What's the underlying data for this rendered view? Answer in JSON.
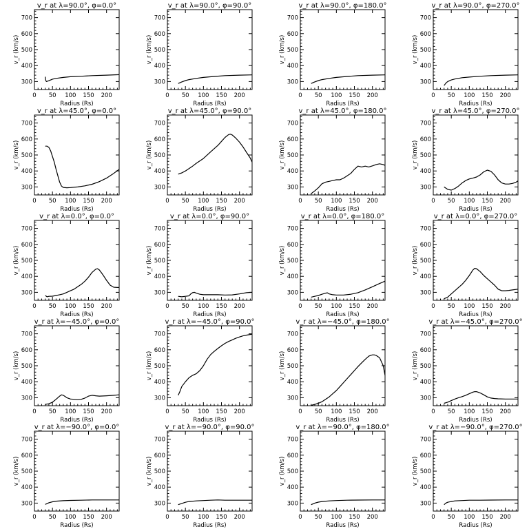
{
  "chart_data": [
    {
      "type": "line",
      "title": "v_r at λ=90.0°, φ=0.0°",
      "xlabel": "Radius (Rs)",
      "ylabel": "v_r (km/s)",
      "xlim": [
        0,
        235
      ],
      "ylim": [
        250,
        750
      ],
      "series": [
        {
          "x": [
            30,
            31,
            33,
            36,
            40,
            50,
            60,
            80,
            100,
            130,
            160,
            200,
            235
          ],
          "y": [
            330,
            310,
            300,
            302,
            305,
            315,
            320,
            326,
            330,
            333,
            337,
            340,
            343
          ]
        }
      ]
    },
    {
      "type": "line",
      "title": "v_r at λ=90.0°, φ=90.0°",
      "xlabel": "Radius (Rs)",
      "ylabel": "v_r (km/s)",
      "xlim": [
        0,
        235
      ],
      "ylim": [
        250,
        750
      ],
      "series": [
        {
          "x": [
            30,
            40,
            50,
            60,
            80,
            100,
            130,
            160,
            200,
            235
          ],
          "y": [
            288,
            298,
            306,
            312,
            320,
            326,
            332,
            337,
            340,
            342
          ]
        }
      ]
    },
    {
      "type": "line",
      "title": "v_r at λ=90.0°, φ=180.0°",
      "xlabel": "Radius (Rs)",
      "ylabel": "v_r (km/s)",
      "xlim": [
        0,
        235
      ],
      "ylim": [
        250,
        750
      ],
      "series": [
        {
          "x": [
            30,
            40,
            50,
            60,
            80,
            100,
            130,
            160,
            200,
            235
          ],
          "y": [
            288,
            298,
            306,
            312,
            320,
            326,
            332,
            337,
            340,
            342
          ]
        }
      ]
    },
    {
      "type": "line",
      "title": "v_r at λ=90.0°, φ=270.0°",
      "xlabel": "Radius (Rs)",
      "ylabel": "v_r (km/s)",
      "xlim": [
        0,
        235
      ],
      "ylim": [
        250,
        750
      ],
      "series": [
        {
          "x": [
            30,
            35,
            40,
            50,
            60,
            80,
            100,
            130,
            160,
            200,
            235
          ],
          "y": [
            275,
            290,
            300,
            310,
            316,
            324,
            328,
            333,
            337,
            340,
            342
          ]
        }
      ]
    },
    {
      "type": "line",
      "title": "v_r at λ=45.0°, φ=0.0°",
      "xlabel": "Radius (Rs)",
      "ylabel": "v_r (km/s)",
      "xlim": [
        0,
        235
      ],
      "ylim": [
        250,
        750
      ],
      "series": [
        {
          "x": [
            30,
            35,
            40,
            45,
            50,
            55,
            60,
            65,
            70,
            75,
            80,
            90,
            100,
            120,
            140,
            160,
            180,
            200,
            220,
            235
          ],
          "y": [
            555,
            555,
            548,
            525,
            490,
            455,
            410,
            370,
            330,
            305,
            297,
            295,
            296,
            300,
            307,
            317,
            333,
            355,
            385,
            410
          ]
        }
      ]
    },
    {
      "type": "line",
      "title": "v_r at λ=45.0°, φ=90.0°",
      "xlabel": "Radius (Rs)",
      "ylabel": "v_r (km/s)",
      "xlim": [
        0,
        235
      ],
      "ylim": [
        250,
        750
      ],
      "series": [
        {
          "x": [
            30,
            40,
            50,
            60,
            70,
            80,
            100,
            120,
            140,
            150,
            160,
            170,
            175,
            180,
            190,
            200,
            210,
            220,
            230,
            235
          ],
          "y": [
            380,
            388,
            400,
            415,
            430,
            448,
            478,
            520,
            560,
            585,
            610,
            628,
            630,
            625,
            605,
            580,
            550,
            515,
            480,
            455
          ]
        }
      ]
    },
    {
      "type": "line",
      "title": "v_r at λ=45.0°, φ=180.0°",
      "xlabel": "Radius (Rs)",
      "ylabel": "v_r (km/s)",
      "xlim": [
        0,
        235
      ],
      "ylim": [
        250,
        750
      ],
      "series": [
        {
          "x": [
            30,
            40,
            50,
            60,
            70,
            80,
            90,
            100,
            110,
            120,
            130,
            140,
            150,
            160,
            170,
            180,
            190,
            200,
            210,
            220,
            230,
            235
          ],
          "y": [
            258,
            275,
            295,
            320,
            330,
            335,
            340,
            345,
            345,
            355,
            370,
            385,
            410,
            430,
            425,
            430,
            425,
            432,
            440,
            445,
            440,
            435
          ]
        }
      ]
    },
    {
      "type": "line",
      "title": "v_r at λ=45.0°, φ=270.0°",
      "xlabel": "Radius (Rs)",
      "ylabel": "v_r (km/s)",
      "xlim": [
        0,
        235
      ],
      "ylim": [
        250,
        750
      ],
      "series": [
        {
          "x": [
            30,
            40,
            50,
            60,
            70,
            80,
            90,
            100,
            110,
            120,
            130,
            140,
            150,
            160,
            170,
            180,
            190,
            200,
            210,
            220,
            230,
            235
          ],
          "y": [
            300,
            285,
            280,
            290,
            305,
            325,
            340,
            350,
            355,
            362,
            375,
            395,
            405,
            398,
            375,
            345,
            325,
            318,
            318,
            322,
            330,
            338
          ]
        }
      ]
    },
    {
      "type": "line",
      "title": "v_r at λ=0.0°, φ=0.0°",
      "xlabel": "Radius (Rs)",
      "ylabel": "v_r (km/s)",
      "xlim": [
        0,
        235
      ],
      "ylim": [
        250,
        750
      ],
      "series": [
        {
          "x": [
            30,
            35,
            40,
            50,
            60,
            70,
            80,
            90,
            100,
            110,
            120,
            130,
            140,
            150,
            160,
            170,
            175,
            180,
            190,
            200,
            210,
            220,
            230,
            235
          ],
          "y": [
            280,
            272,
            275,
            276,
            280,
            285,
            290,
            300,
            310,
            320,
            335,
            350,
            370,
            395,
            425,
            445,
            448,
            440,
            410,
            375,
            345,
            332,
            330,
            330
          ]
        }
      ]
    },
    {
      "type": "line",
      "title": "v_r at λ=0.0°, φ=90.0°",
      "xlabel": "Radius (Rs)",
      "ylabel": "v_r (km/s)",
      "xlim": [
        0,
        235
      ],
      "ylim": [
        250,
        750
      ],
      "series": [
        {
          "x": [
            30,
            40,
            50,
            60,
            65,
            70,
            75,
            80,
            90,
            100,
            120,
            140,
            160,
            180,
            200,
            220,
            235
          ],
          "y": [
            275,
            272,
            275,
            278,
            290,
            298,
            300,
            295,
            288,
            285,
            285,
            285,
            283,
            284,
            290,
            298,
            300
          ]
        }
      ]
    },
    {
      "type": "line",
      "title": "v_r at λ=0.0°, φ=180.0°",
      "xlabel": "Radius (Rs)",
      "ylabel": "v_r (km/s)",
      "xlim": [
        0,
        235
      ],
      "ylim": [
        250,
        750
      ],
      "series": [
        {
          "x": [
            30,
            40,
            50,
            60,
            70,
            75,
            80,
            90,
            100,
            120,
            140,
            160,
            180,
            200,
            220,
            235
          ],
          "y": [
            270,
            275,
            280,
            288,
            295,
            297,
            290,
            285,
            283,
            283,
            288,
            298,
            315,
            335,
            355,
            370
          ]
        }
      ]
    },
    {
      "type": "line",
      "title": "v_r at λ=0.0°, φ=270.0°",
      "xlabel": "Radius (Rs)",
      "ylabel": "v_r (km/s)",
      "xlim": [
        0,
        235
      ],
      "ylim": [
        250,
        750
      ],
      "series": [
        {
          "x": [
            30,
            40,
            50,
            60,
            70,
            80,
            90,
            100,
            110,
            115,
            120,
            130,
            140,
            150,
            160,
            170,
            180,
            190,
            200,
            210,
            220,
            235
          ],
          "y": [
            260,
            270,
            290,
            310,
            330,
            350,
            375,
            405,
            440,
            450,
            448,
            430,
            405,
            385,
            365,
            345,
            320,
            310,
            310,
            312,
            315,
            320
          ]
        }
      ]
    },
    {
      "type": "line",
      "title": "v_r at λ=−45.0°, φ=0.0°",
      "xlabel": "Radius (Rs)",
      "ylabel": "v_r (km/s)",
      "xlim": [
        0,
        235
      ],
      "ylim": [
        250,
        750
      ],
      "series": [
        {
          "x": [
            30,
            40,
            50,
            60,
            70,
            75,
            80,
            90,
            100,
            110,
            120,
            130,
            140,
            150,
            160,
            170,
            180,
            200,
            220,
            235
          ],
          "y": [
            258,
            262,
            272,
            290,
            310,
            318,
            315,
            300,
            292,
            290,
            288,
            290,
            298,
            310,
            315,
            312,
            310,
            312,
            315,
            318
          ]
        }
      ]
    },
    {
      "type": "line",
      "title": "v_r at λ=−45.0°, φ=90.0°",
      "xlabel": "Radius (Rs)",
      "ylabel": "v_r (km/s)",
      "xlim": [
        0,
        235
      ],
      "ylim": [
        250,
        750
      ],
      "series": [
        {
          "x": [
            30,
            35,
            40,
            50,
            60,
            70,
            80,
            90,
            100,
            110,
            120,
            130,
            140,
            150,
            160,
            170,
            180,
            190,
            200,
            210,
            220,
            235
          ],
          "y": [
            315,
            340,
            370,
            400,
            425,
            440,
            450,
            470,
            500,
            540,
            570,
            590,
            608,
            625,
            640,
            652,
            662,
            672,
            680,
            687,
            692,
            698
          ]
        }
      ]
    },
    {
      "type": "line",
      "title": "v_r at λ=−45.0°, φ=180.0°",
      "xlabel": "Radius (Rs)",
      "ylabel": "v_r (km/s)",
      "xlim": [
        0,
        235
      ],
      "ylim": [
        250,
        750
      ],
      "series": [
        {
          "x": [
            30,
            40,
            50,
            60,
            70,
            80,
            90,
            100,
            110,
            120,
            130,
            140,
            150,
            160,
            170,
            180,
            190,
            195,
            200,
            205,
            210,
            220,
            230,
            235
          ],
          "y": [
            252,
            258,
            265,
            275,
            290,
            305,
            325,
            345,
            370,
            395,
            420,
            445,
            470,
            495,
            518,
            540,
            560,
            565,
            568,
            568,
            565,
            550,
            500,
            440
          ]
        }
      ]
    },
    {
      "type": "line",
      "title": "v_r at λ=−45.0°, φ=270.0°",
      "xlabel": "Radius (Rs)",
      "ylabel": "v_r (km/s)",
      "xlim": [
        0,
        235
      ],
      "ylim": [
        250,
        750
      ],
      "series": [
        {
          "x": [
            30,
            40,
            50,
            60,
            70,
            80,
            90,
            100,
            110,
            115,
            120,
            130,
            140,
            150,
            160,
            170,
            180,
            200,
            220,
            235
          ],
          "y": [
            265,
            272,
            282,
            292,
            300,
            307,
            315,
            325,
            335,
            338,
            338,
            330,
            318,
            305,
            298,
            295,
            293,
            292,
            292,
            292
          ]
        }
      ]
    },
    {
      "type": "line",
      "title": "v_r at λ=−90.0°, φ=0.0°",
      "xlabel": "Radius (Rs)",
      "ylabel": "v_r (km/s)",
      "xlim": [
        0,
        235
      ],
      "ylim": [
        250,
        750
      ],
      "series": [
        {
          "x": [
            30,
            40,
            50,
            60,
            80,
            100,
            130,
            160,
            200,
            235
          ],
          "y": [
            292,
            302,
            308,
            312,
            315,
            317,
            318,
            320,
            320,
            320
          ]
        }
      ]
    },
    {
      "type": "line",
      "title": "v_r at λ=−90.0°, φ=90.0°",
      "xlabel": "Radius (Rs)",
      "ylabel": "v_r (km/s)",
      "xlim": [
        0,
        235
      ],
      "ylim": [
        250,
        750
      ],
      "series": [
        {
          "x": [
            30,
            40,
            50,
            60,
            80,
            100,
            120,
            140,
            160,
            200,
            235
          ],
          "y": [
            290,
            298,
            305,
            310,
            314,
            316,
            318,
            320,
            318,
            318,
            318
          ]
        }
      ]
    },
    {
      "type": "line",
      "title": "v_r at λ=−90.0°, φ=180.0°",
      "xlabel": "Radius (Rs)",
      "ylabel": "v_r (km/s)",
      "xlim": [
        0,
        235
      ],
      "ylim": [
        250,
        750
      ],
      "series": [
        {
          "x": [
            30,
            40,
            50,
            60,
            80,
            100,
            130,
            160,
            200,
            235
          ],
          "y": [
            290,
            300,
            306,
            310,
            314,
            316,
            318,
            319,
            320,
            320
          ]
        }
      ]
    },
    {
      "type": "line",
      "title": "v_r at λ=−90.0°, φ=270.0°",
      "xlabel": "Radius (Rs)",
      "ylabel": "v_r (km/s)",
      "xlim": [
        0,
        235
      ],
      "ylim": [
        250,
        750
      ],
      "series": [
        {
          "x": [
            30,
            35,
            40,
            50,
            60,
            80,
            100,
            130,
            160,
            200,
            235
          ],
          "y": [
            290,
            300,
            305,
            310,
            314,
            316,
            318,
            318,
            319,
            320,
            320
          ]
        }
      ]
    }
  ],
  "axes": {
    "x_ticks": [
      "0",
      "50",
      "100",
      "150",
      "200"
    ],
    "x_tick_values": [
      0,
      50,
      100,
      150,
      200
    ],
    "y_ticks": [
      "300",
      "400",
      "500",
      "600",
      "700"
    ],
    "y_tick_values": [
      300,
      400,
      500,
      600,
      700
    ]
  }
}
